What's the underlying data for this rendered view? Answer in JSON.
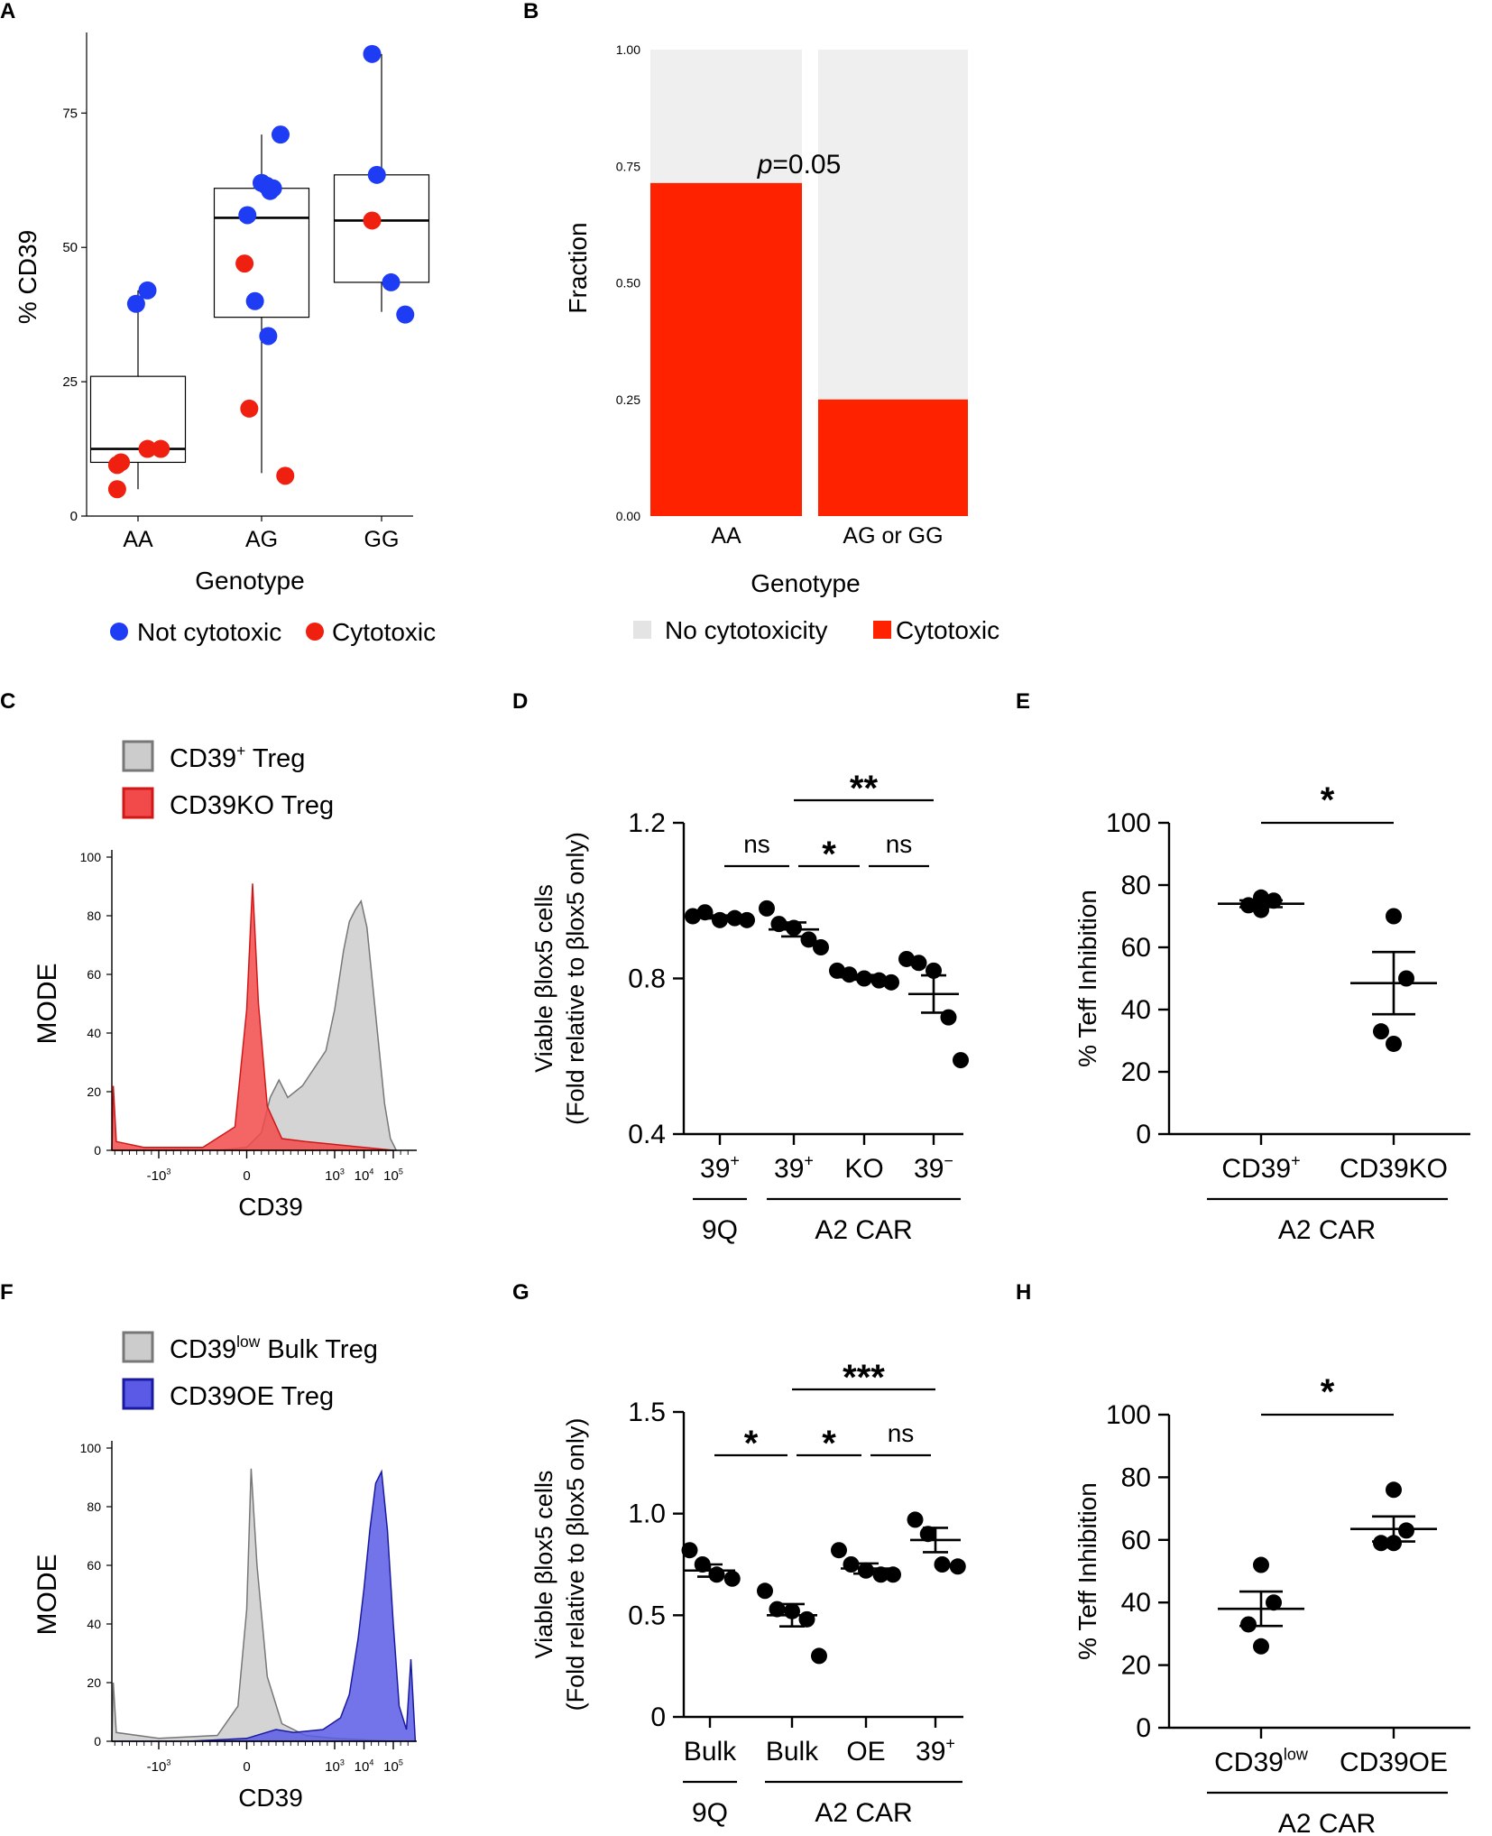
{
  "colors": {
    "blue": "#1f3cf5",
    "red": "#f02010",
    "bar_red": "#ff2200",
    "bar_grey": "#efefef",
    "hist_grey": "#cccccc",
    "hist_red": "#f24a4a",
    "hist_blue": "#5a5ae6",
    "black": "#000000"
  },
  "chart_data": [
    {
      "id": "A",
      "type": "scatter",
      "subtype": "box_with_points",
      "panel_label": "A",
      "xlabel": "Genotype",
      "ylabel": "% CD39",
      "categories": [
        "AA",
        "AG",
        "GG"
      ],
      "ylim": [
        0,
        90
      ],
      "yticks": [
        "0",
        "25",
        "50",
        "75"
      ],
      "boxes": [
        {
          "category": "AA",
          "min": 5,
          "q1": 10,
          "median": 12.5,
          "q3": 26,
          "max": 42
        },
        {
          "category": "AG",
          "min": 8,
          "q1": 37,
          "median": 55.5,
          "q3": 61,
          "max": 71
        },
        {
          "category": "GG",
          "min": 38,
          "q1": 43.5,
          "median": 55,
          "q3": 63.5,
          "max": 86
        }
      ],
      "series": [
        {
          "name": "Not cytotoxic",
          "color": "#1f3cf5",
          "points": [
            {
              "x": "AA",
              "y": 42,
              "j": 0.1
            },
            {
              "x": "AA",
              "y": 39.5,
              "j": -0.02
            },
            {
              "x": "AG",
              "y": 71,
              "j": 0.2
            },
            {
              "x": "AG",
              "y": 62,
              "j": 0.0
            },
            {
              "x": "AG",
              "y": 61.5,
              "j": 0.05
            },
            {
              "x": "AG",
              "y": 60.5,
              "j": 0.09
            },
            {
              "x": "AG",
              "y": 61,
              "j": 0.12
            },
            {
              "x": "AG",
              "y": 56,
              "j": -0.15
            },
            {
              "x": "AG",
              "y": 40,
              "j": -0.07
            },
            {
              "x": "AG",
              "y": 33.5,
              "j": 0.07
            },
            {
              "x": "GG",
              "y": 86,
              "j": -0.1
            },
            {
              "x": "GG",
              "y": 63.5,
              "j": -0.05
            },
            {
              "x": "GG",
              "y": 43.5,
              "j": 0.1
            },
            {
              "x": "GG",
              "y": 37.5,
              "j": 0.25
            }
          ]
        },
        {
          "name": "Cytotoxic",
          "color": "#f02010",
          "points": [
            {
              "x": "AA",
              "y": 12.5,
              "j": 0.1
            },
            {
              "x": "AA",
              "y": 12.5,
              "j": 0.24
            },
            {
              "x": "AA",
              "y": 10,
              "j": -0.18
            },
            {
              "x": "AA",
              "y": 9.5,
              "j": -0.22
            },
            {
              "x": "AA",
              "y": 5,
              "j": -0.22
            },
            {
              "x": "AG",
              "y": 47,
              "j": -0.18
            },
            {
              "x": "AG",
              "y": 20,
              "j": -0.13
            },
            {
              "x": "AG",
              "y": 7.5,
              "j": 0.25
            },
            {
              "x": "GG",
              "y": 55,
              "j": -0.1
            }
          ]
        }
      ],
      "legend": [
        "Not cytotoxic",
        "Cytotoxic"
      ]
    },
    {
      "id": "B",
      "type": "bar",
      "subtype": "stacked_fraction",
      "panel_label": "B",
      "xlabel": "Genotype",
      "ylabel": "Fraction",
      "categories": [
        "AA",
        "AG or GG"
      ],
      "ylim": [
        0,
        1
      ],
      "yticks": [
        "0.00",
        "0.25",
        "0.50",
        "0.75",
        "1.00"
      ],
      "series": [
        {
          "name": "Cytotoxic",
          "values": [
            0.714,
            0.25
          ],
          "color": "#ff2200"
        },
        {
          "name": "No cytotoxicity",
          "values": [
            0.286,
            0.75
          ],
          "color": "#efefef"
        }
      ],
      "annotation": {
        "p_italic": "p",
        "text": "=0.05"
      },
      "legend": [
        "No cytotoxicity",
        "Cytotoxic"
      ]
    },
    {
      "id": "C",
      "type": "area",
      "subtype": "histogram_overlay",
      "panel_label": "C",
      "xlabel": "CD39",
      "ylabel": "MODE",
      "ylim": [
        0,
        100
      ],
      "yticks": [
        "0",
        "20",
        "40",
        "60",
        "80",
        "100"
      ],
      "xticks": [
        {
          "pos": -3,
          "base": "-10",
          "exp": "3"
        },
        {
          "pos": 0,
          "base": "0",
          "exp": ""
        },
        {
          "pos": 3,
          "base": "10",
          "exp": "3"
        },
        {
          "pos": 4,
          "base": "10",
          "exp": "4"
        },
        {
          "pos": 5,
          "base": "10",
          "exp": "5"
        }
      ],
      "series": [
        {
          "name": "CD39+ Treg",
          "legend_main": "CD39",
          "legend_sup": "+",
          "legend_tail": " Treg",
          "fill": "#cccccc",
          "stroke": "#777777",
          "curve": [
            [
              -4.6,
              0
            ],
            [
              -4.2,
              0
            ],
            [
              -1,
              0
            ],
            [
              0,
              1
            ],
            [
              0.5,
              6
            ],
            [
              0.8,
              18
            ],
            [
              1.1,
              24
            ],
            [
              1.4,
              18
            ],
            [
              1.9,
              22
            ],
            [
              2.3,
              28
            ],
            [
              2.7,
              34
            ],
            [
              3.0,
              48
            ],
            [
              3.3,
              68
            ],
            [
              3.5,
              78
            ],
            [
              3.7,
              82
            ],
            [
              3.9,
              85
            ],
            [
              4.1,
              76
            ],
            [
              4.3,
              56
            ],
            [
              4.5,
              36
            ],
            [
              4.7,
              16
            ],
            [
              4.9,
              4
            ],
            [
              5.1,
              0
            ]
          ]
        },
        {
          "name": "CD39KO Treg",
          "legend_main": "CD39KO Treg",
          "legend_sup": "",
          "legend_tail": "",
          "fill": "#f24a4a",
          "stroke": "#d01818",
          "curve": [
            [
              -4.6,
              0
            ],
            [
              -4.55,
              22
            ],
            [
              -4.45,
              3
            ],
            [
              -3.5,
              1
            ],
            [
              -1.5,
              1
            ],
            [
              -0.4,
              8
            ],
            [
              0,
              48
            ],
            [
              0.2,
              91
            ],
            [
              0.4,
              50
            ],
            [
              0.7,
              15
            ],
            [
              1.2,
              4
            ],
            [
              2,
              3
            ],
            [
              3,
              2
            ],
            [
              4,
              1
            ],
            [
              5,
              0
            ]
          ]
        }
      ]
    },
    {
      "id": "D",
      "type": "scatter",
      "subtype": "dot_mean_sem",
      "panel_label": "D",
      "ylabel_line1": "Viable βlox5 cells",
      "ylabel_line2": "(Fold relative to βlox5 only)",
      "ylim": [
        0.4,
        1.2
      ],
      "yticks": [
        "0.4",
        "0.8",
        "1.2"
      ],
      "categories": [
        {
          "main": "39",
          "sup": "+"
        },
        {
          "main": "39",
          "sup": "+"
        },
        {
          "main": "KO",
          "sup": ""
        },
        {
          "main": "39",
          "sup": "−"
        }
      ],
      "groups": [
        {
          "label": "9Q",
          "from": 0,
          "to": 0
        },
        {
          "label": "A2 CAR",
          "from": 1,
          "to": 3
        }
      ],
      "points": [
        [
          0.96,
          0.97,
          0.95,
          0.955,
          0.95
        ],
        [
          0.98,
          0.94,
          0.93,
          0.9,
          0.88
        ],
        [
          0.82,
          0.81,
          0.8,
          0.795,
          0.79
        ],
        [
          0.85,
          0.84,
          0.82,
          0.7,
          0.59
        ]
      ],
      "means": [
        0.958,
        0.926,
        0.803,
        0.76
      ],
      "sems": [
        0.004,
        0.018,
        0.006,
        0.048
      ],
      "brackets": [
        {
          "from": 0,
          "to": 1,
          "label": "ns",
          "level": 0
        },
        {
          "from": 1,
          "to": 2,
          "label": "*",
          "level": 0
        },
        {
          "from": 2,
          "to": 3,
          "label": "ns",
          "level": 0
        },
        {
          "from": 1,
          "to": 3,
          "label": "**",
          "level": 1
        }
      ]
    },
    {
      "id": "E",
      "type": "scatter",
      "subtype": "dot_mean_sem",
      "panel_label": "E",
      "ylabel": "% Teff Inhibition",
      "ylim": [
        0,
        100
      ],
      "yticks": [
        "0",
        "20",
        "40",
        "60",
        "80",
        "100"
      ],
      "categories": [
        {
          "main": "CD39",
          "sup": "+"
        },
        {
          "main": "CD39KO",
          "sup": ""
        }
      ],
      "group_label": "A2 CAR",
      "points": [
        [
          76,
          75,
          73.5,
          72
        ],
        [
          70,
          50,
          33,
          29
        ]
      ],
      "means": [
        74,
        48.5
      ],
      "sems": [
        1.1,
        10
      ],
      "brackets": [
        {
          "from": 0,
          "to": 1,
          "label": "*",
          "level": 0
        }
      ]
    },
    {
      "id": "F",
      "type": "area",
      "subtype": "histogram_overlay",
      "panel_label": "F",
      "xlabel": "CD39",
      "ylabel": "MODE",
      "ylim": [
        0,
        100
      ],
      "yticks": [
        "0",
        "20",
        "40",
        "60",
        "80",
        "100"
      ],
      "xticks": [
        {
          "pos": -3,
          "base": "-10",
          "exp": "3"
        },
        {
          "pos": 0,
          "base": "0",
          "exp": ""
        },
        {
          "pos": 3,
          "base": "10",
          "exp": "3"
        },
        {
          "pos": 4,
          "base": "10",
          "exp": "4"
        },
        {
          "pos": 5,
          "base": "10",
          "exp": "5"
        }
      ],
      "series": [
        {
          "name": "CD39low Bulk Treg",
          "legend_main": "CD39",
          "legend_sup": "low",
          "legend_tail": " Bulk Treg",
          "fill": "#cccccc",
          "stroke": "#777777",
          "curve": [
            [
              -4.6,
              0
            ],
            [
              -4.55,
              20
            ],
            [
              -4.45,
              3
            ],
            [
              -3,
              1
            ],
            [
              -1,
              2
            ],
            [
              -0.3,
              12
            ],
            [
              0,
              45
            ],
            [
              0.15,
              93
            ],
            [
              0.35,
              60
            ],
            [
              0.7,
              22
            ],
            [
              1.2,
              6
            ],
            [
              2,
              2
            ],
            [
              3,
              1
            ],
            [
              5,
              0
            ]
          ]
        },
        {
          "name": "CD39OE Treg",
          "legend_main": "CD39OE Treg",
          "legend_sup": "",
          "legend_tail": "",
          "fill": "#5a5ae6",
          "stroke": "#1a1aa0",
          "curve": [
            [
              -4.6,
              0
            ],
            [
              -2,
              0
            ],
            [
              0,
              1
            ],
            [
              1,
              4
            ],
            [
              1.6,
              3
            ],
            [
              2.6,
              4
            ],
            [
              3.2,
              8
            ],
            [
              3.5,
              16
            ],
            [
              3.8,
              35
            ],
            [
              4.0,
              52
            ],
            [
              4.2,
              72
            ],
            [
              4.4,
              88
            ],
            [
              4.6,
              92
            ],
            [
              4.8,
              72
            ],
            [
              5.0,
              40
            ],
            [
              5.2,
              12
            ],
            [
              5.45,
              4
            ],
            [
              5.6,
              28
            ],
            [
              5.75,
              0
            ]
          ]
        }
      ]
    },
    {
      "id": "G",
      "type": "scatter",
      "subtype": "dot_mean_sem",
      "panel_label": "G",
      "ylabel_line1": "Viable βlox5 cells",
      "ylabel_line2": "(Fold relative to βlox5 only)",
      "ylim": [
        0,
        1.5
      ],
      "yticks": [
        "0",
        "0.5",
        "1.0",
        "1.5"
      ],
      "categories": [
        {
          "main": "Bulk",
          "sup": ""
        },
        {
          "main": "Bulk",
          "sup": ""
        },
        {
          "main": "OE",
          "sup": ""
        },
        {
          "main": "39",
          "sup": "+"
        }
      ],
      "groups": [
        {
          "label": "9Q",
          "from": 0,
          "to": 0
        },
        {
          "label": "A2 CAR",
          "from": 1,
          "to": 3
        }
      ],
      "points": [
        [
          0.82,
          0.75,
          0.7,
          0.68
        ],
        [
          0.62,
          0.53,
          0.52,
          0.48,
          0.3
        ],
        [
          0.82,
          0.75,
          0.72,
          0.7,
          0.7
        ],
        [
          0.97,
          0.9,
          0.75,
          0.74
        ]
      ],
      "means": [
        0.72,
        0.5,
        0.73,
        0.87
      ],
      "sems": [
        0.03,
        0.055,
        0.025,
        0.06
      ],
      "brackets": [
        {
          "from": 0,
          "to": 1,
          "label": "*",
          "level": 0
        },
        {
          "from": 1,
          "to": 2,
          "label": "*",
          "level": 0
        },
        {
          "from": 2,
          "to": 3,
          "label": "ns",
          "level": 0
        },
        {
          "from": 1,
          "to": 3,
          "label": "***",
          "level": 1
        }
      ]
    },
    {
      "id": "H",
      "type": "scatter",
      "subtype": "dot_mean_sem",
      "panel_label": "H",
      "ylabel": "% Teff Inhibition",
      "ylim": [
        0,
        100
      ],
      "yticks": [
        "0",
        "20",
        "40",
        "60",
        "80",
        "100"
      ],
      "categories": [
        {
          "main": "CD39",
          "sup": "low"
        },
        {
          "main": "CD39OE",
          "sup": ""
        }
      ],
      "group_label": "A2 CAR",
      "points": [
        [
          52,
          40,
          33,
          26
        ],
        [
          76,
          63,
          59,
          59
        ]
      ],
      "means": [
        38,
        63.5
      ],
      "sems": [
        5.5,
        4
      ],
      "brackets": [
        {
          "from": 0,
          "to": 1,
          "label": "*",
          "level": 0
        }
      ]
    }
  ]
}
